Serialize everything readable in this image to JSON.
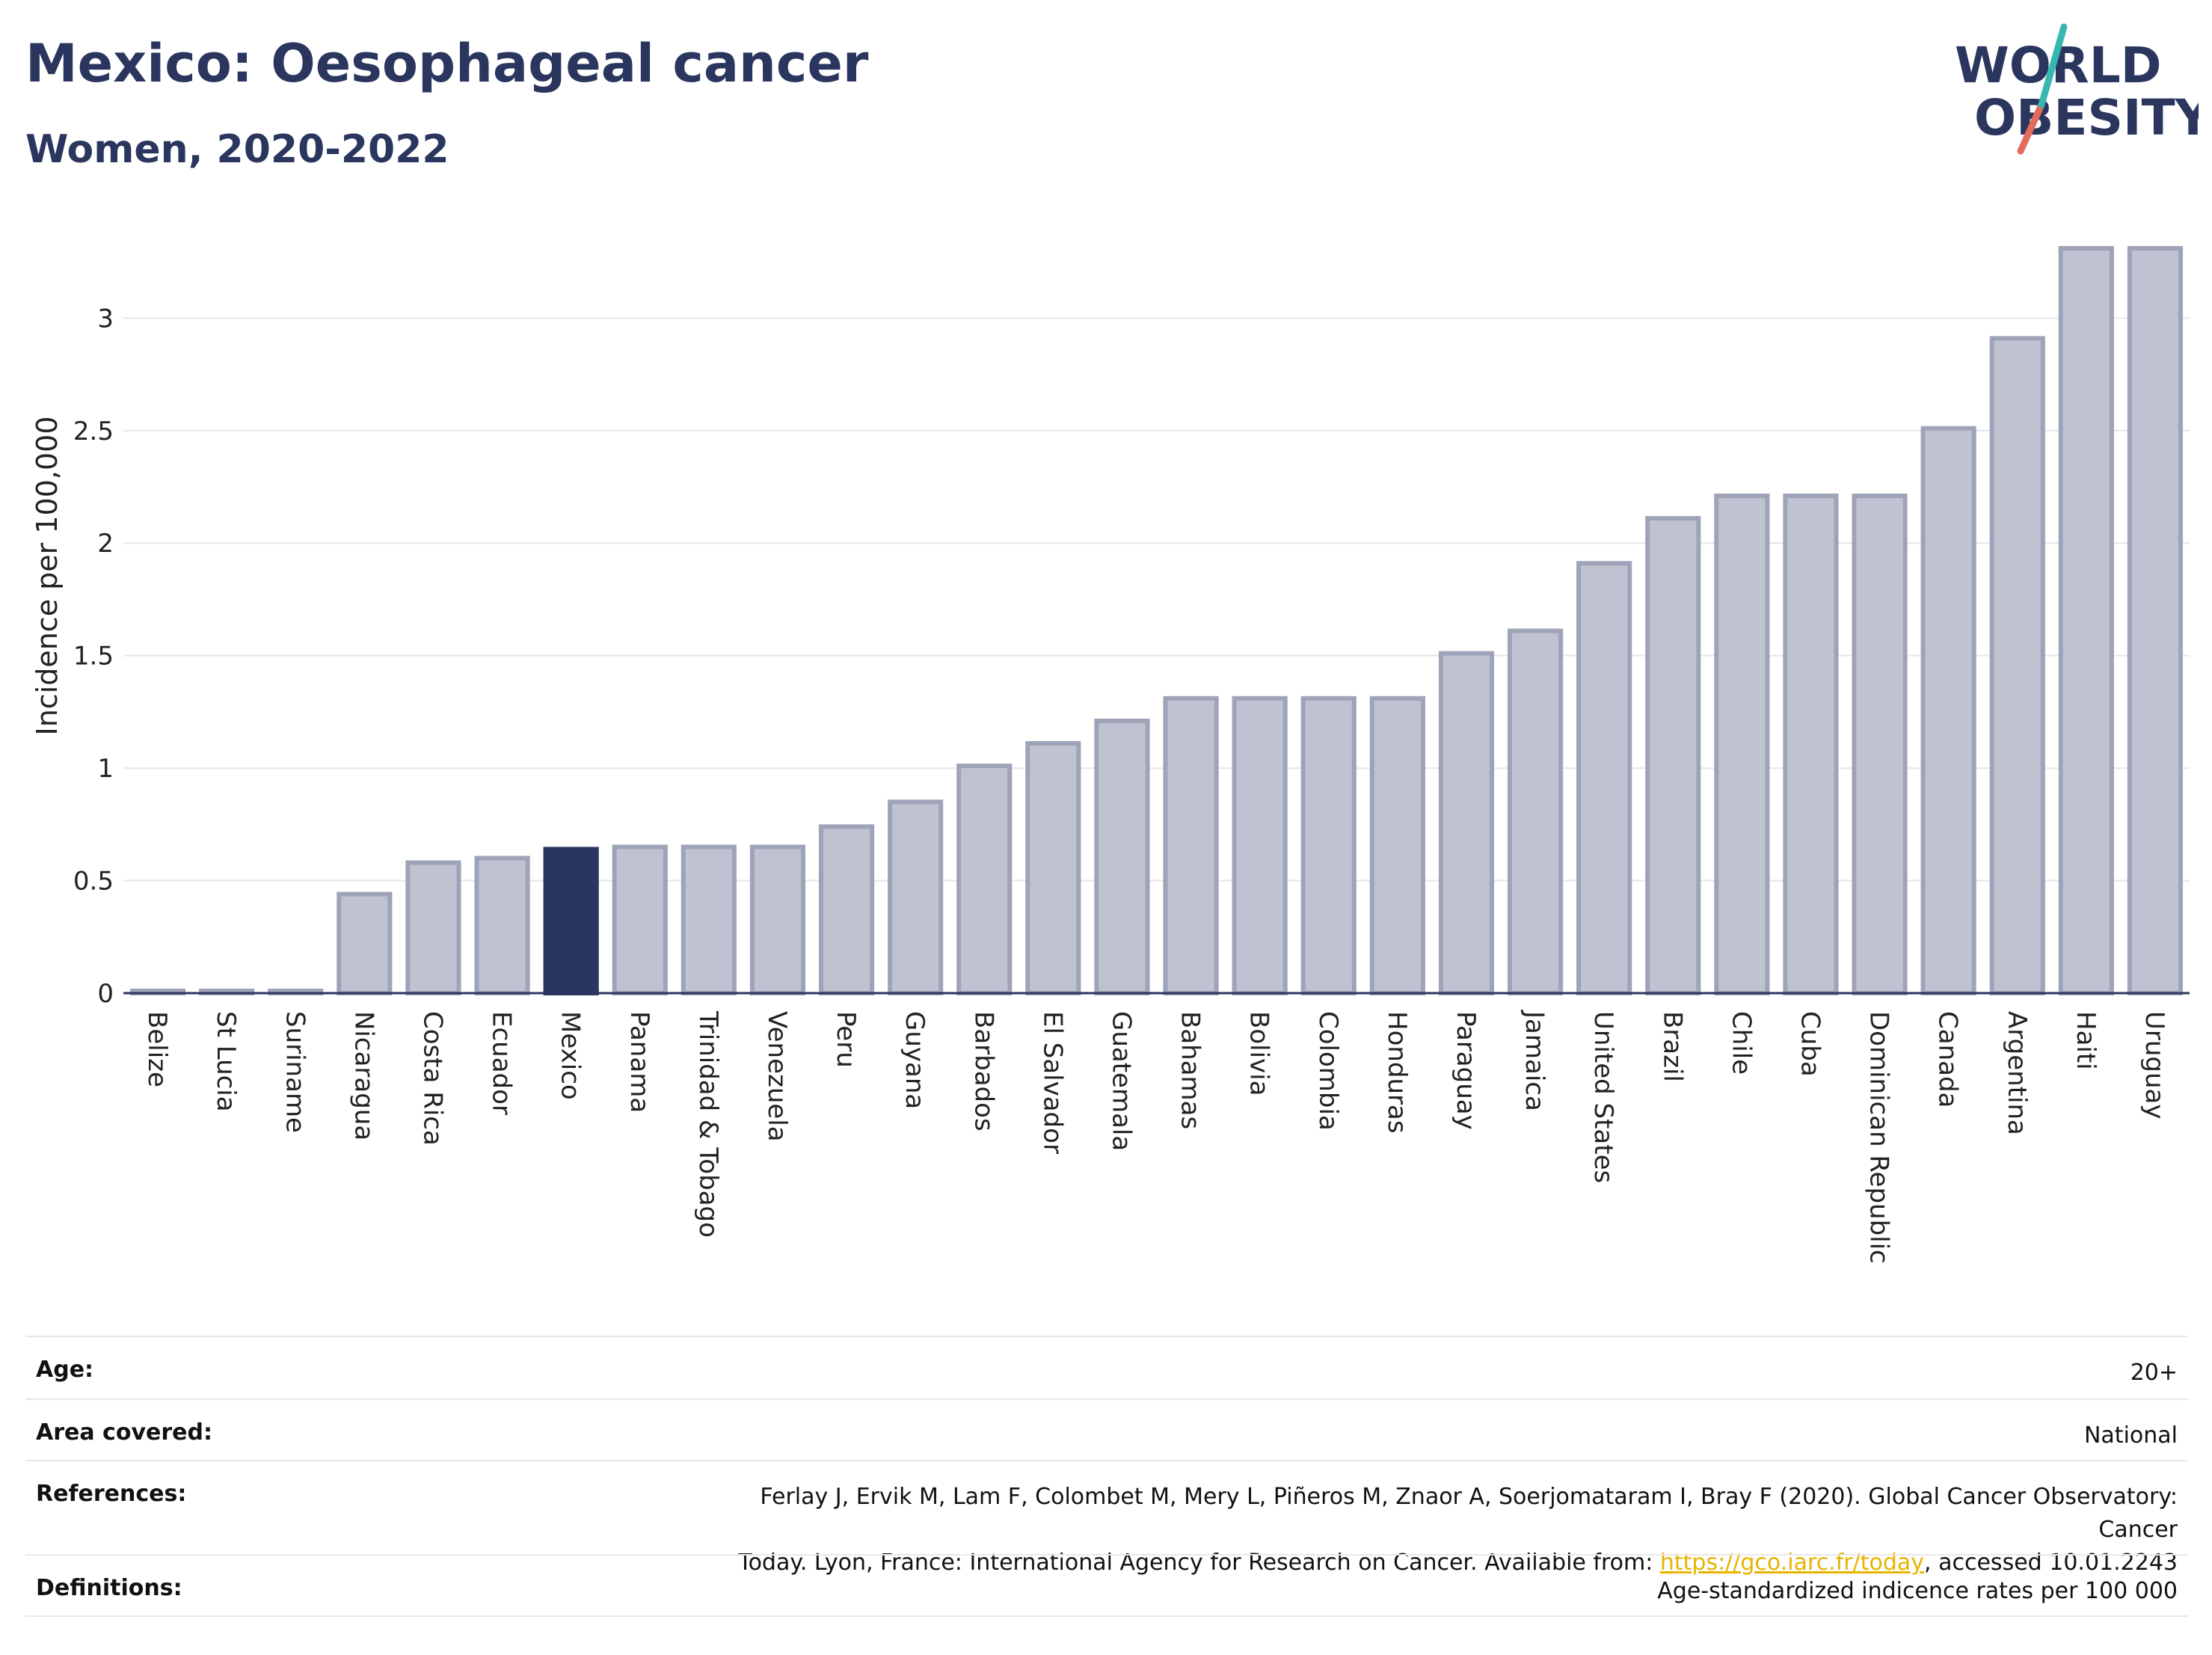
{
  "header": {
    "title": "Mexico: Oesophageal cancer",
    "subtitle": "Women, 2020-2022"
  },
  "logo": {
    "line1": "WORLD",
    "line2": "OBESITY"
  },
  "chart_data": {
    "type": "bar",
    "ylabel": "Incidence per 100,000",
    "ylim": [
      0,
      3.35
    ],
    "yticks": [
      "0",
      "0.5",
      "1",
      "1.5",
      "2",
      "2.5",
      "3"
    ],
    "ytick_values": [
      0,
      0.5,
      1,
      1.5,
      2,
      2.5,
      3
    ],
    "grid": true,
    "highlight": "Mexico",
    "categories": [
      "Belize",
      "St Lucia",
      "Suriname",
      "Nicaragua",
      "Costa Rica",
      "Ecuador",
      "Mexico",
      "Panama",
      "Trinidad & Tobago",
      "Venezuela",
      "Peru",
      "Guyana",
      "Barbados",
      "El Salvador",
      "Guatemala",
      "Bahamas",
      "Bolivia",
      "Colombia",
      "Honduras",
      "Paraguay",
      "Jamaica",
      "United States",
      "Brazil",
      "Chile",
      "Cuba",
      "Dominican Republic",
      "Canada",
      "Argentina",
      "Haiti",
      "Uruguay"
    ],
    "values": [
      0.01,
      0.01,
      0.01,
      0.44,
      0.58,
      0.6,
      0.64,
      0.65,
      0.65,
      0.65,
      0.74,
      0.85,
      1.01,
      1.11,
      1.21,
      1.31,
      1.31,
      1.31,
      1.31,
      1.51,
      1.61,
      1.91,
      2.11,
      2.21,
      2.21,
      2.21,
      2.51,
      2.91,
      3.31,
      3.31
    ],
    "colors": {
      "bar": "#bfc3d1",
      "bar_border": "#9ea3b8",
      "highlight": "#2b365f"
    }
  },
  "meta": {
    "age": {
      "label": "Age:",
      "value": "20+"
    },
    "area": {
      "label": "Area covered:",
      "value": "National"
    },
    "references": {
      "label": "References:",
      "line1": "Ferlay J, Ervik M, Lam F, Colombet M, Mery L, Piñeros M, Znaor A, Soerjomataram I, Bray F (2020). Global Cancer Observatory: Cancer",
      "line2_pre": "Today. Lyon, France: International Agency for Research on Cancer. Available from: ",
      "link": "https://gco.iarc.fr/today",
      "line2_post": ", accessed 10.01.2243"
    },
    "definitions": {
      "label": "Definitions:",
      "value": "Age-standardized indicence rates per 100 000"
    }
  }
}
